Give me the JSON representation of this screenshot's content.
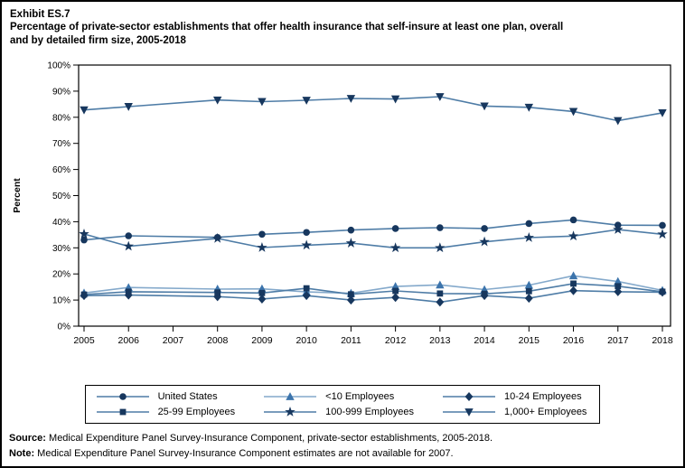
{
  "page": {
    "exhibit_label": "Exhibit ES.7",
    "title_line1": "Percentage of private-sector establishments that offer health insurance that self-insure at least one plan, overall",
    "title_line2": "and by detailed firm size, 2005-2018",
    "source_label": "Source:",
    "source_text": " Medical Expenditure Panel Survey-Insurance Component, private-sector establishments, 2005-2018.",
    "note_label": "Note:",
    "note_text": " Medical Expenditure Panel Survey-Insurance Component estimates are not available for 2007."
  },
  "colors": {
    "background": "#ffffff",
    "border": "#000000",
    "axis": "#000000",
    "dark_marker": "#17375E",
    "dark_line": "#4E7CA6",
    "light_marker": "#3C74AC",
    "light_line": "#84A9CB"
  },
  "chart_data": {
    "type": "line",
    "title": "",
    "xlabel": "",
    "ylabel": "Percent",
    "ylim": [
      0,
      100
    ],
    "y_tick_step": 10,
    "y_tick_suffix": "%",
    "grid": false,
    "legend_position": "bottom",
    "missing_data_note": "no data for 2007",
    "x": [
      2005,
      2006,
      2007,
      2008,
      2009,
      2010,
      2011,
      2012,
      2013,
      2014,
      2015,
      2016,
      2017,
      2018
    ],
    "series": [
      {
        "name": "United States",
        "marker": "circle",
        "color": "#17375E",
        "line_color": "#4E7CA6",
        "values": [
          33.0,
          34.6,
          null,
          34.0,
          35.2,
          35.9,
          36.8,
          37.4,
          37.7,
          37.4,
          39.3,
          40.7,
          38.7,
          38.6
        ]
      },
      {
        "name": "<10 Employees",
        "marker": "triangle",
        "color": "#3C74AC",
        "line_color": "#84A9CB",
        "values": [
          12.7,
          14.8,
          null,
          14.2,
          14.3,
          13.1,
          12.6,
          15.2,
          15.8,
          14.0,
          15.7,
          19.3,
          17.1,
          13.7
        ]
      },
      {
        "name": "10-24 Employees",
        "marker": "diamond",
        "color": "#17375E",
        "line_color": "#4E7CA6",
        "values": [
          11.7,
          11.9,
          null,
          11.3,
          10.4,
          11.7,
          10.0,
          11.0,
          9.2,
          11.7,
          10.7,
          13.6,
          13.2,
          13.0
        ]
      },
      {
        "name": "25-99 Employees",
        "marker": "square",
        "color": "#17375E",
        "line_color": "#4E7CA6",
        "values": [
          12.1,
          13.2,
          null,
          12.9,
          12.7,
          14.5,
          12.2,
          13.5,
          12.5,
          12.4,
          13.4,
          16.3,
          15.3,
          13.2
        ]
      },
      {
        "name": "100-999 Employees",
        "marker": "star",
        "color": "#17375E",
        "line_color": "#4E7CA6",
        "values": [
          35.3,
          30.6,
          null,
          33.6,
          30.1,
          31.0,
          31.8,
          30.0,
          30.0,
          32.3,
          33.9,
          34.5,
          37.0,
          35.2
        ]
      },
      {
        "name": "1,000+ Employees",
        "marker": "triangle-down",
        "color": "#17375E",
        "line_color": "#4E7CA6",
        "values": [
          82.8,
          84.1,
          null,
          86.6,
          86.0,
          86.5,
          87.2,
          87.0,
          87.9,
          84.3,
          83.8,
          82.2,
          78.7,
          81.7
        ]
      }
    ]
  }
}
